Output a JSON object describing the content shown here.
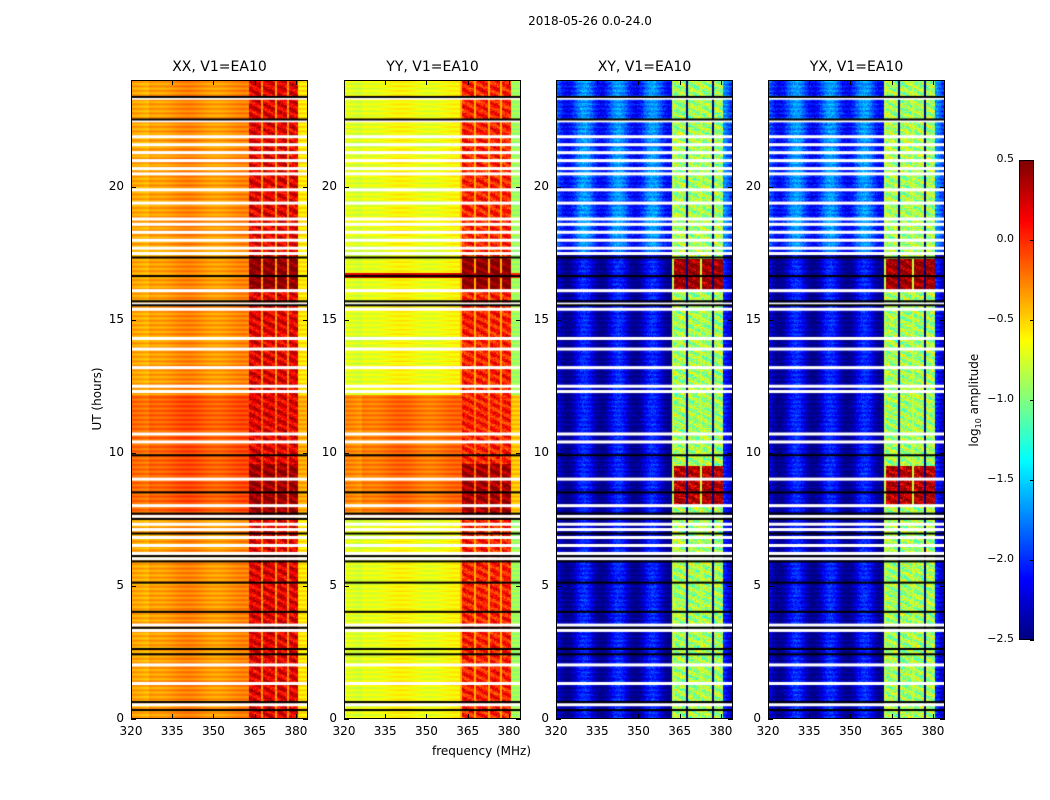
{
  "chart_data": {
    "type": "heatmap",
    "title": "2018-05-26 0.0-24.0",
    "xlabel": "frequency (MHz)",
    "ylabel": "UT (hours)",
    "xlim": [
      320,
      384.4
    ],
    "ylim": [
      0,
      24
    ],
    "xticks": [
      "320",
      "335",
      "350",
      "365",
      "380"
    ],
    "xtick_values": [
      320,
      335,
      350,
      365,
      380
    ],
    "yticks": [
      "0",
      "5",
      "10",
      "15",
      "20"
    ],
    "ytick_values": [
      0,
      5,
      10,
      15,
      20
    ],
    "colorbar": {
      "label_main": "log",
      "label_sub": "10",
      "label_rest": " amplitude",
      "range": [
        -2.5,
        0.5
      ],
      "ticks": [
        "0.5",
        "0.0",
        "−0.5",
        "−1.0",
        "−1.5",
        "−2.0",
        "−2.5"
      ],
      "tick_values": [
        0.5,
        0,
        -0.5,
        -1,
        -1.5,
        -2,
        -2.5
      ],
      "colormap": "jet"
    },
    "panels": [
      {
        "title": "XX, V1=EA10",
        "base": -0.3,
        "base_high_ut": [
          [
            7.5,
            12.2,
            -0.12
          ]
        ],
        "rfi": 0.2,
        "rfi_bright_ut": [
          [
            16.1,
            17.3,
            0.5
          ],
          [
            7.6,
            9.6,
            0.45
          ]
        ]
      },
      {
        "title": "YY, V1=EA10",
        "base": -0.65,
        "base_high_ut": [
          [
            16.6,
            16.8,
            0.3
          ],
          [
            7.5,
            12.2,
            -0.2
          ]
        ],
        "rfi": 0.05,
        "rfi_bright_ut": [
          [
            16.1,
            17.3,
            0.5
          ],
          [
            7.6,
            9.6,
            0.4
          ]
        ]
      },
      {
        "title": "XY, V1=EA10",
        "base": -2.25,
        "base_high_ut": [
          [
            17.5,
            24,
            -1.9
          ]
        ],
        "rfi": -0.9,
        "rfi_bright_ut": [
          [
            16.1,
            17.3,
            0.45
          ],
          [
            8.0,
            9.5,
            0.35
          ]
        ]
      },
      {
        "title": "YX, V1=EA10",
        "base": -2.25,
        "base_high_ut": [
          [
            17.5,
            24,
            -1.9
          ]
        ],
        "rfi": -0.9,
        "rfi_bright_ut": [
          [
            16.1,
            17.3,
            0.45
          ],
          [
            8.0,
            9.5,
            0.35
          ]
        ]
      }
    ],
    "rfi_band_mhz": [
      [
        363,
        367.3
      ],
      [
        368.2,
        372.4
      ],
      [
        373.2,
        376.8
      ],
      [
        377.6,
        381
      ]
    ],
    "blank_rows_ut": [
      23.35,
      22.5,
      21.9,
      21.6,
      21.3,
      21.0,
      20.7,
      20.5,
      19.9,
      19.4,
      18.8,
      18.6,
      18.3,
      18.0,
      17.7,
      17.5,
      16.1,
      15.6,
      15.4,
      14.3,
      13.9,
      13.2,
      12.5,
      12.3,
      10.7,
      10.4,
      9.0,
      8.0,
      7.6,
      7.3,
      7.1,
      6.8,
      6.5,
      6.2,
      6.0,
      3.5,
      3.3,
      2.0,
      1.3,
      0.5
    ],
    "flag_rows_ut": [
      23.4,
      22.55,
      17.35,
      16.65,
      15.7,
      15.55,
      9.9,
      8.5,
      7.7,
      7.5,
      6.95,
      6.1,
      5.9,
      5.1,
      4.0,
      3.4,
      2.6,
      2.4,
      0.6,
      0.3
    ]
  }
}
